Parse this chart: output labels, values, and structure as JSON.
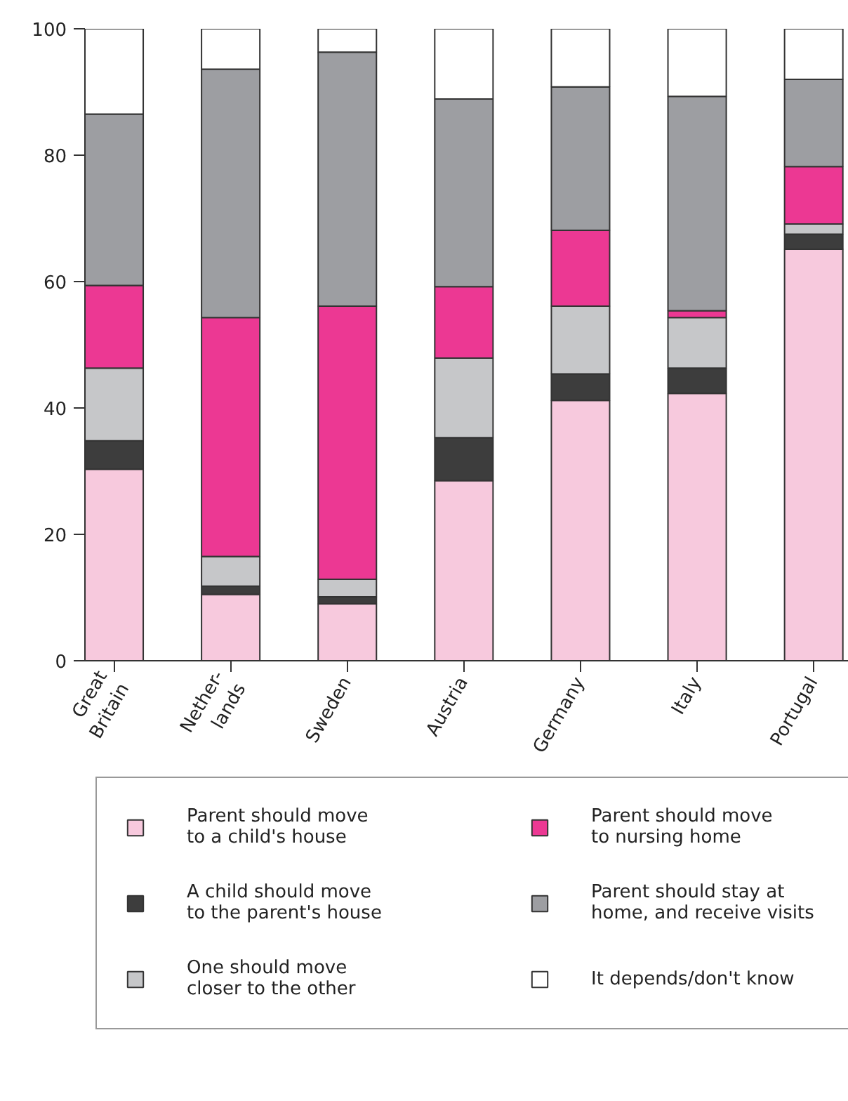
{
  "chart_data": {
    "type": "bar",
    "stacked": true,
    "categories": [
      "Great\nBritain",
      "Nether-\nlands",
      "Sweden",
      "Austria",
      "Germany",
      "Italy",
      "Portugal"
    ],
    "series": [
      {
        "name": "Parent should move\nto a child's house",
        "color": "#f7c9dd",
        "values": [
          30.3,
          10.5,
          9.0,
          28.5,
          41.2,
          42.3,
          65.1
        ]
      },
      {
        "name": "A child should move\nto the parent's house",
        "color": "#3d3d3d",
        "values": [
          4.5,
          1.3,
          1.1,
          6.8,
          4.2,
          4.0,
          2.4
        ]
      },
      {
        "name": "One should move\ncloser to the other",
        "color": "#c6c7c9",
        "values": [
          11.5,
          4.7,
          2.8,
          12.6,
          10.7,
          8.0,
          1.6
        ]
      },
      {
        "name": "Parent should move\nto nursing home",
        "color": "#ec3893",
        "values": [
          13.1,
          37.8,
          43.2,
          11.3,
          12.0,
          1.1,
          9.1
        ]
      },
      {
        "name": "Parent should stay at\nhome, and receive visits",
        "color": "#9d9ea2",
        "values": [
          27.1,
          39.3,
          40.2,
          29.7,
          22.7,
          33.9,
          13.8
        ]
      },
      {
        "name": "It depends/don't know",
        "color": "#ffffff",
        "values": [
          13.5,
          6.4,
          3.7,
          11.1,
          9.2,
          10.7,
          8.0
        ]
      }
    ],
    "ylim": [
      0,
      100
    ],
    "yticks": [
      0,
      20,
      40,
      60,
      80,
      100
    ],
    "grid": false,
    "legend": "bottom"
  }
}
